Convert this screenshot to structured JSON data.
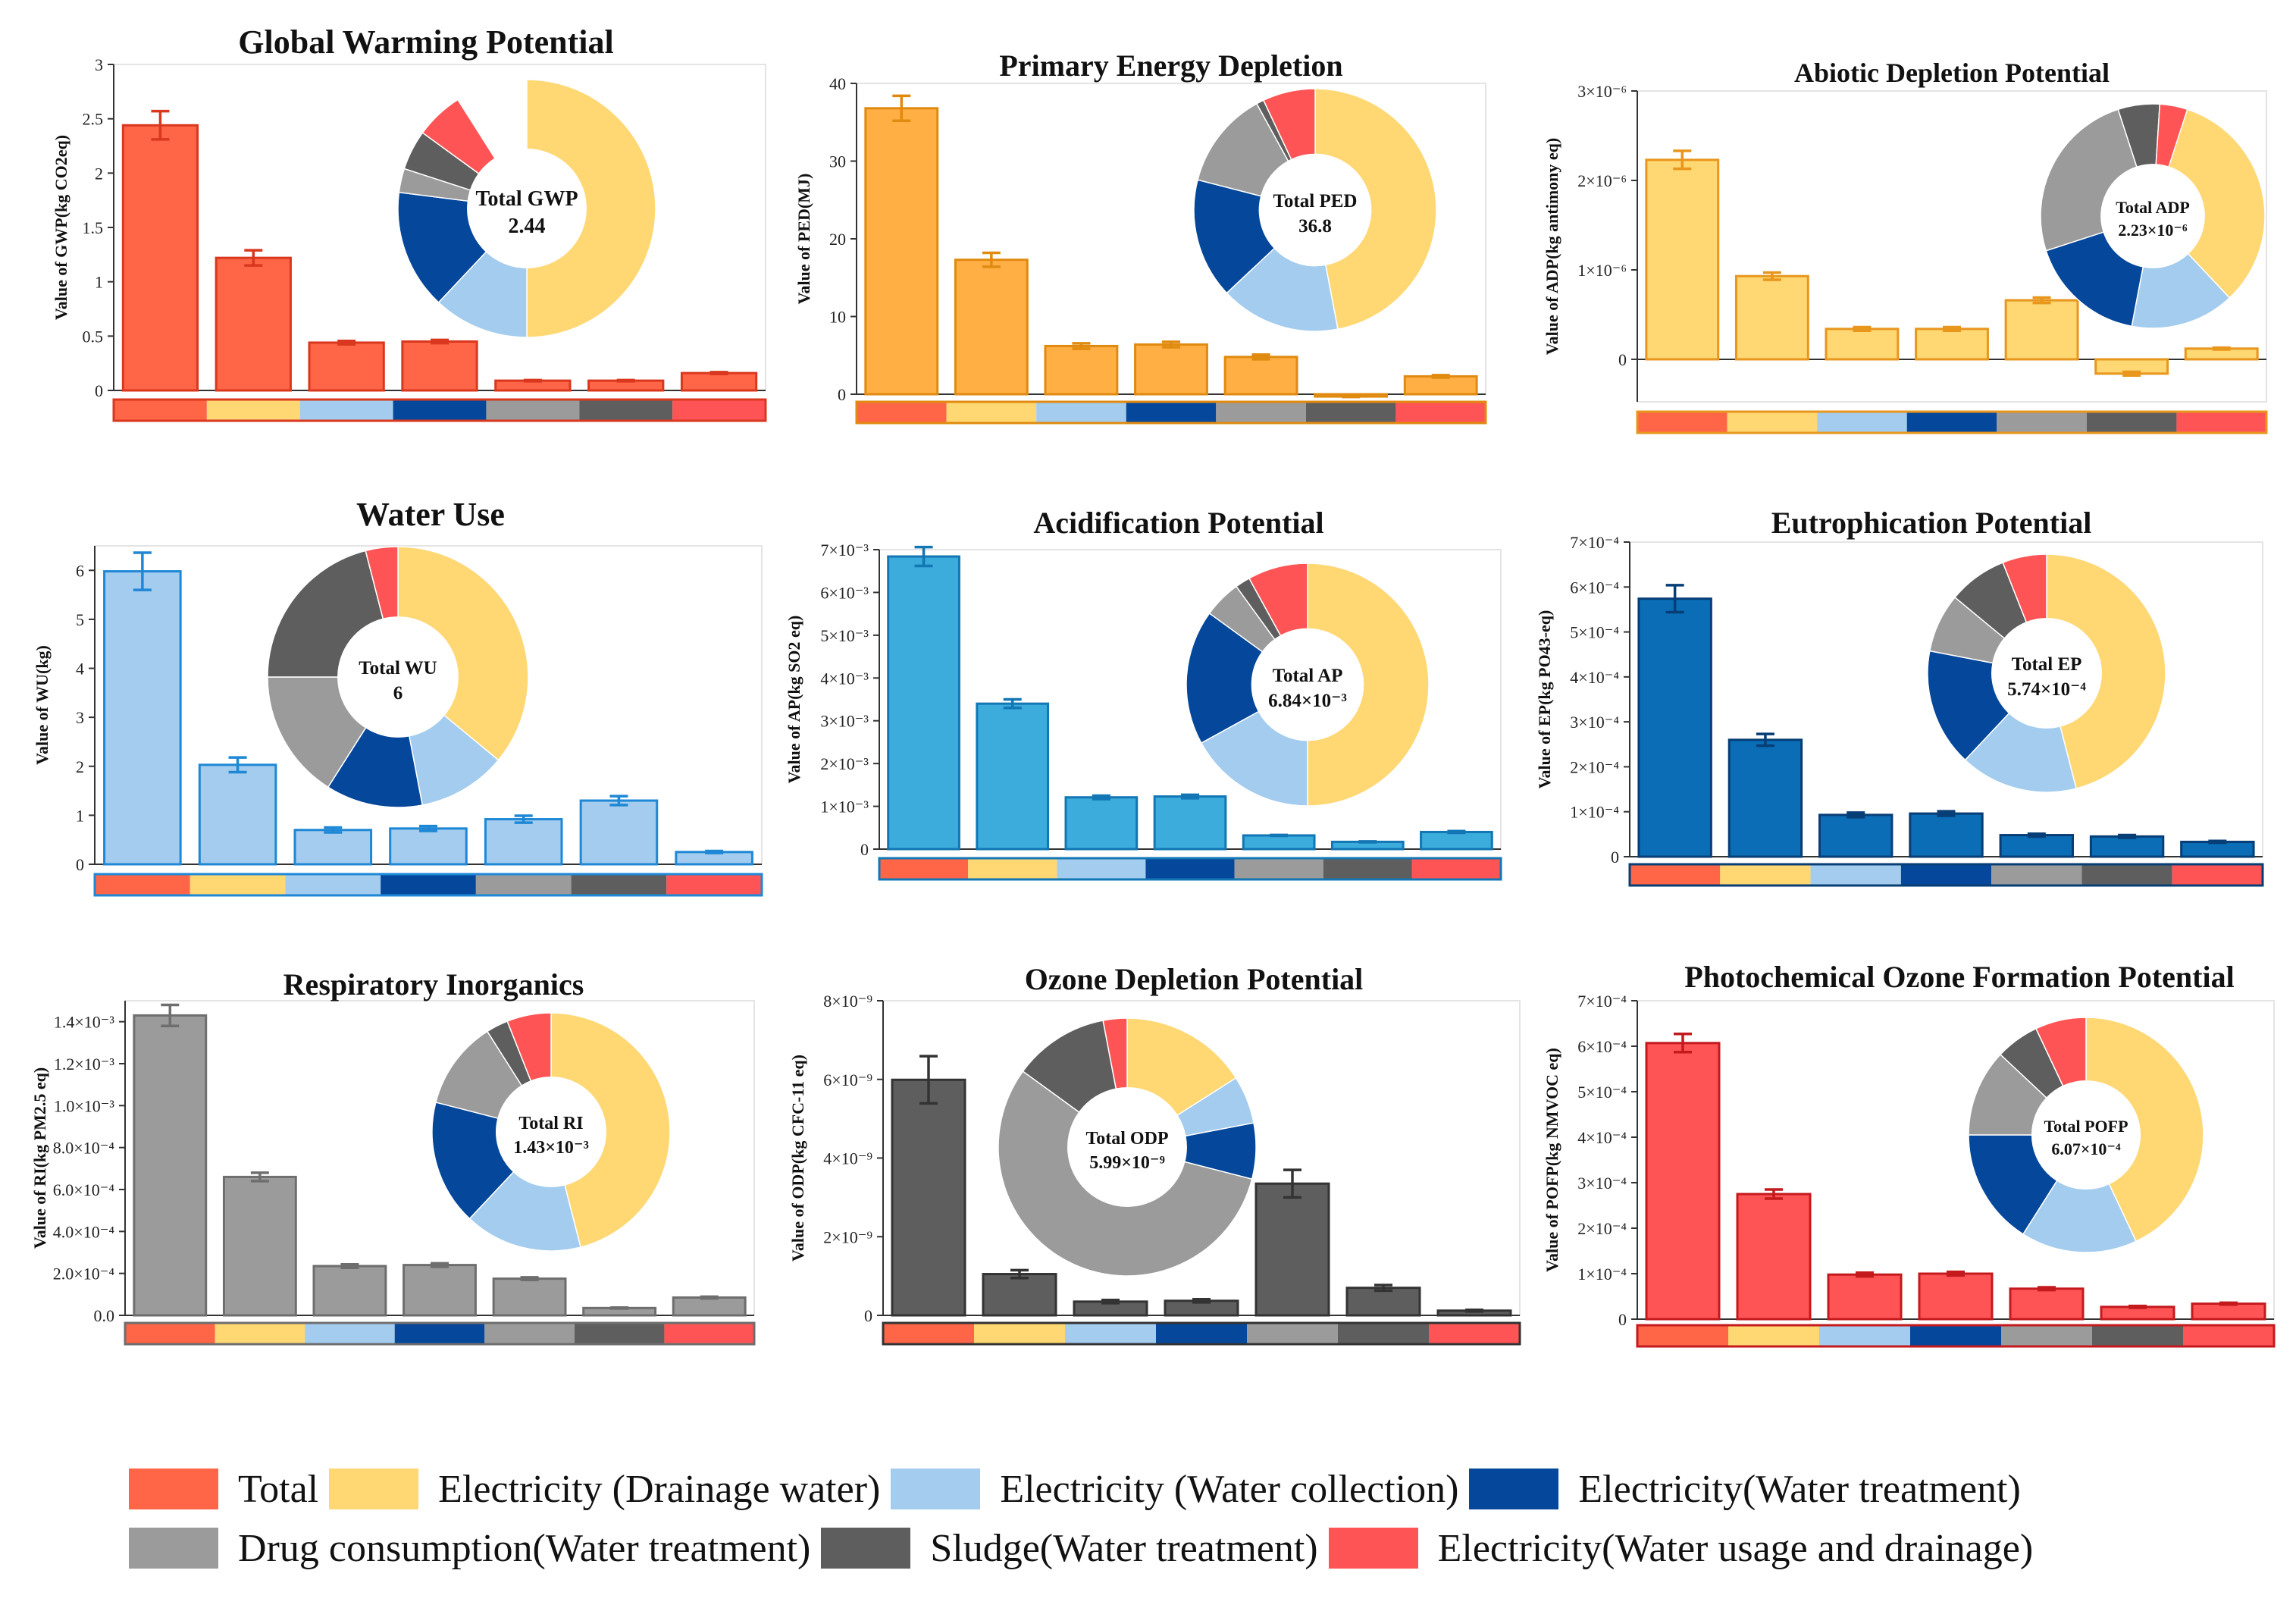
{
  "colors": {
    "total": "#FF6547",
    "elec_drainage": "#FFD773",
    "elec_collection": "#A3CCEE",
    "elec_treatment": "#05479A",
    "drug": "#9B9B9B",
    "sludge": "#5E5E5E",
    "elec_usage": "#FF5455"
  },
  "legend": [
    {
      "key": "total",
      "label": "Total"
    },
    {
      "key": "elec_drainage",
      "label": "Electricity (Drainage water)"
    },
    {
      "key": "elec_collection",
      "label": "Electricity (Water collection)"
    },
    {
      "key": "elec_treatment",
      "label": "Electricity(Water treatment)"
    },
    {
      "key": "drug",
      "label": "Drug consumption(Water treatment)"
    },
    {
      "key": "sludge",
      "label": "Sludge(Water treatment)"
    },
    {
      "key": "elec_usage",
      "label": "Electricity(Water usage and drainage)"
    }
  ],
  "chart_data": [
    {
      "type": "bar",
      "id": "gwp",
      "title": "Global Warming Potential",
      "ylabel": "Value of GWP(kg CO2eq)",
      "bar_color": "#FF6547",
      "edge_color": "#D9381E",
      "ylim": [
        0,
        3
      ],
      "yticks": [
        "0",
        "0.5",
        "1",
        "1.5",
        "2",
        "2.5",
        "3"
      ],
      "tick_values": [
        0,
        0.5,
        1,
        1.5,
        2,
        2.5,
        3
      ],
      "values": [
        2.44,
        1.22,
        0.44,
        0.45,
        0.09,
        0.09,
        0.16
      ],
      "errors": [
        0.13,
        0.07,
        0.015,
        0.015,
        0.005,
        0.005,
        0.008
      ],
      "donut": {
        "label": "Total GWP",
        "value": "2.44",
        "shares": [
          0.5,
          0.12,
          0.15,
          0.03,
          0.05,
          0.06
        ],
        "label_size": 28
      }
    },
    {
      "type": "bar",
      "id": "ped",
      "title": "Primary Energy Depletion",
      "ylabel": "Value of PED(MJ)",
      "bar_color": "#FFAF44",
      "edge_color": "#E08A10",
      "ylim": [
        0,
        40
      ],
      "yticks": [
        "0",
        "10",
        "20",
        "30",
        "40"
      ],
      "tick_values": [
        0,
        10,
        20,
        30,
        40
      ],
      "values": [
        36.8,
        17.3,
        6.2,
        6.4,
        4.8,
        -0.3,
        2.3
      ],
      "errors": [
        1.6,
        0.9,
        0.35,
        0.35,
        0.3,
        0.05,
        0.15
      ],
      "donut": {
        "label": "Total PED",
        "value": "36.8",
        "shares": [
          0.47,
          0.16,
          0.16,
          0.13,
          0.01,
          0.07
        ],
        "label_size": 25
      }
    },
    {
      "type": "bar",
      "id": "adp",
      "title": "Abiotic Depletion Potential",
      "ylabel": "Value of ADP(kg antimony eq)",
      "bar_color": "#FFD773",
      "edge_color": "#E8961C",
      "ylim": [
        -4.75e-07,
        3e-06
      ],
      "yticks": [
        "0",
        "1×10⁻⁶",
        "2×10⁻⁶",
        "3×10⁻⁶"
      ],
      "tick_values": [
        0,
        1e-06,
        2e-06,
        3e-06
      ],
      "values": [
        2.23e-06,
        9.3e-07,
        3.4e-07,
        3.4e-07,
        6.6e-07,
        -1.6e-07,
        1.2e-07
      ],
      "errors": [
        1e-07,
        4e-08,
        2e-08,
        2e-08,
        3e-08,
        2e-08,
        1e-08
      ],
      "donut": {
        "label": "Total ADP",
        "value": "2.23×10⁻⁶",
        "shares": [
          0.38,
          0.15,
          0.17,
          0.25,
          0.06,
          0.04
        ],
        "label_size": 22
      }
    },
    {
      "type": "bar",
      "id": "wu",
      "title": "Water Use",
      "ylabel": "Value of WU(kg)",
      "bar_color": "#A3CCEE",
      "edge_color": "#1E88D6",
      "ylim": [
        0,
        6.5
      ],
      "yticks": [
        "0",
        "1",
        "2",
        "3",
        "4",
        "5",
        "6"
      ],
      "tick_values": [
        0,
        1,
        2,
        3,
        4,
        5,
        6
      ],
      "values": [
        5.98,
        2.03,
        0.7,
        0.73,
        0.92,
        1.3,
        0.25
      ],
      "errors": [
        0.38,
        0.15,
        0.05,
        0.05,
        0.07,
        0.09,
        0.02
      ],
      "donut": {
        "label": "Total WU",
        "value": "6",
        "shares": [
          0.36,
          0.11,
          0.12,
          0.16,
          0.21,
          0.04
        ],
        "label_size": 25
      }
    },
    {
      "type": "bar",
      "id": "ap",
      "title": "Acidification Potential",
      "ylabel": "Value of AP(kg SO2 eq)",
      "bar_color": "#3BACDB",
      "edge_color": "#1277B4",
      "ylim": [
        0,
        0.007
      ],
      "yticks": [
        "0",
        "1×10⁻³",
        "2×10⁻³",
        "3×10⁻³",
        "4×10⁻³",
        "5×10⁻³",
        "6×10⁻³",
        "7×10⁻³"
      ],
      "tick_values": [
        0,
        0.001,
        0.002,
        0.003,
        0.004,
        0.005,
        0.006,
        0.007
      ],
      "values": [
        0.00684,
        0.0034,
        0.00121,
        0.00123,
        0.00032,
        0.00017,
        0.0004
      ],
      "errors": [
        0.00022,
        0.0001,
        4e-05,
        4e-05,
        1e-05,
        1e-05,
        2e-05
      ],
      "donut": {
        "label": "Total AP",
        "value": "6.84×10⁻³",
        "shares": [
          0.5,
          0.17,
          0.18,
          0.05,
          0.02,
          0.08
        ],
        "label_size": 25
      }
    },
    {
      "type": "bar",
      "id": "ep",
      "title": "Eutrophication Potential",
      "ylabel": "Value of EP(kg PO43-eq)",
      "bar_color": "#0A6DB5",
      "edge_color": "#073E76",
      "ylim": [
        0,
        0.0007
      ],
      "yticks": [
        "0",
        "1×10⁻⁴",
        "2×10⁻⁴",
        "3×10⁻⁴",
        "4×10⁻⁴",
        "5×10⁻⁴",
        "6×10⁻⁴",
        "7×10⁻⁴"
      ],
      "tick_values": [
        0,
        0.0001,
        0.0002,
        0.0003,
        0.0004,
        0.0005,
        0.0006,
        0.0007
      ],
      "values": [
        0.000574,
        0.00026,
        9.3e-05,
        9.6e-05,
        4.8e-05,
        4.5e-05,
        3.3e-05
      ],
      "errors": [
        3e-05,
        1.3e-05,
        5e-06,
        5e-06,
        3e-06,
        3e-06,
        2e-06
      ],
      "donut": {
        "label": "Total EP",
        "value": "5.74×10⁻⁴",
        "shares": [
          0.46,
          0.16,
          0.16,
          0.08,
          0.08,
          0.06
        ],
        "label_size": 25
      }
    },
    {
      "type": "bar",
      "id": "ri",
      "title": "Respiratory Inorganics",
      "ylabel": "Value of RI(kg PM2.5 eq)",
      "bar_color": "#9B9B9B",
      "edge_color": "#6E6E6E",
      "ylim": [
        0,
        0.0015
      ],
      "yticks": [
        "0.0",
        "2.0×10⁻⁴",
        "4.0×10⁻⁴",
        "6.0×10⁻⁴",
        "8.0×10⁻⁴",
        "1.0×10⁻³",
        "1.2×10⁻³",
        "1.4×10⁻³"
      ],
      "tick_values": [
        0,
        0.0002,
        0.0004,
        0.0006,
        0.0008,
        0.001,
        0.0012,
        0.0014
      ],
      "values": [
        0.00143,
        0.00066,
        0.000235,
        0.00024,
        0.000175,
        3.5e-05,
        8.5e-05
      ],
      "errors": [
        5e-05,
        2e-05,
        8e-06,
        8e-06,
        6e-06,
        2e-06,
        4e-06
      ],
      "donut": {
        "label": "Total RI",
        "value": "1.43×10⁻³",
        "shares": [
          0.46,
          0.16,
          0.17,
          0.12,
          0.03,
          0.06
        ],
        "label_size": 24
      }
    },
    {
      "type": "bar",
      "id": "odp",
      "title": "Ozone Depletion Potential",
      "ylabel": "Value of ODP(kg CFC-11 eq)",
      "bar_color": "#5E5E5E",
      "edge_color": "#333333",
      "ylim": [
        0,
        8e-09
      ],
      "yticks": [
        "0",
        "2×10⁻⁹",
        "4×10⁻⁹",
        "6×10⁻⁹",
        "8×10⁻⁹"
      ],
      "tick_values": [
        0,
        2e-09,
        4e-09,
        6e-09,
        8e-09
      ],
      "values": [
        5.99e-09,
        1.05e-09,
        3.5e-10,
        3.7e-10,
        3.35e-09,
        7e-10,
        1.2e-10
      ],
      "errors": [
        6e-10,
        1e-10,
        4e-11,
        4e-11,
        3.5e-10,
        7e-11,
        2e-11
      ],
      "donut": {
        "label": "Total ODP",
        "value": "5.99×10⁻⁹",
        "shares": [
          0.16,
          0.06,
          0.07,
          0.56,
          0.12,
          0.03
        ],
        "label_size": 24
      }
    },
    {
      "type": "bar",
      "id": "pofp",
      "title": "Photochemical Ozone Formation Potential",
      "ylabel": "Value of POFP(kg NMVOC eq)",
      "bar_color": "#FF5455",
      "edge_color": "#C41A1E",
      "ylim": [
        0,
        0.0007
      ],
      "yticks": [
        "0",
        "1×10⁻⁴",
        "2×10⁻⁴",
        "3×10⁻⁴",
        "4×10⁻⁴",
        "5×10⁻⁴",
        "6×10⁻⁴",
        "7×10⁻⁴"
      ],
      "tick_values": [
        0,
        0.0001,
        0.0002,
        0.0003,
        0.0004,
        0.0005,
        0.0006,
        0.0007
      ],
      "values": [
        0.000607,
        0.000275,
        9.8e-05,
        0.0001,
        6.7e-05,
        2.7e-05,
        3.4e-05
      ],
      "errors": [
        2e-05,
        1e-05,
        4e-06,
        4e-06,
        3e-06,
        2e-06,
        2e-06
      ],
      "donut": {
        "label": "Total POFP",
        "value": "6.07×10⁻⁴",
        "shares": [
          0.43,
          0.16,
          0.16,
          0.12,
          0.06,
          0.07
        ],
        "label_size": 22
      }
    }
  ]
}
